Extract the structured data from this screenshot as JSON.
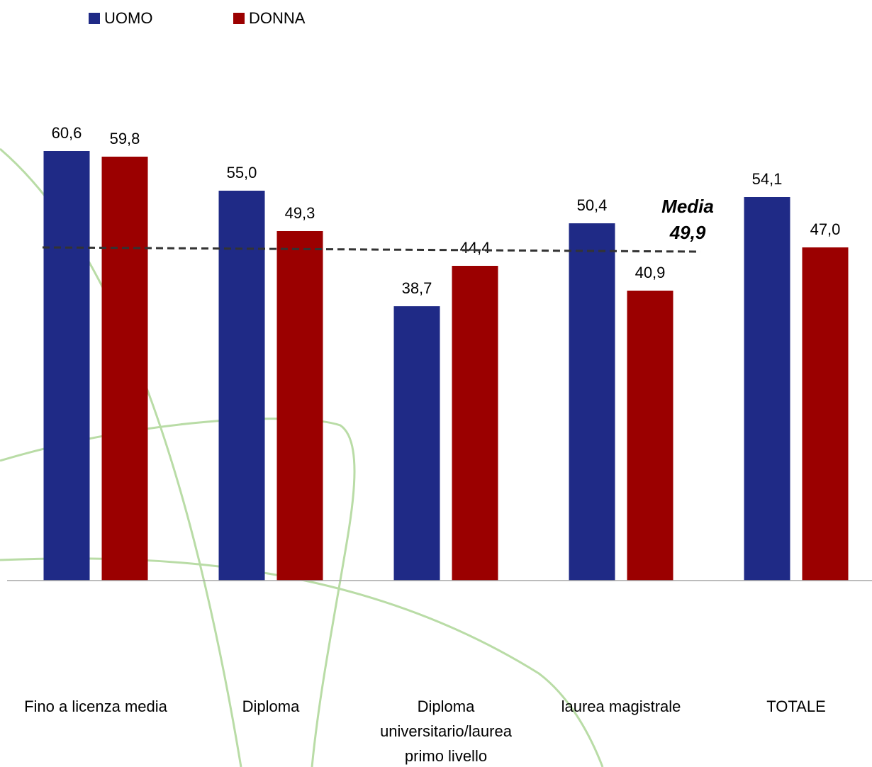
{
  "chart_data": {
    "type": "bar",
    "categories": [
      "Fino a licenza media",
      "Diploma",
      "Diploma universitario/laurea primo livello",
      "laurea magistrale",
      "TOTALE"
    ],
    "category_label_lines": [
      [
        "Fino a licenza media"
      ],
      [
        "Diploma"
      ],
      [
        "Diploma",
        "universitario/laurea",
        "primo livello"
      ],
      [
        "laurea magistrale"
      ],
      [
        "TOTALE"
      ]
    ],
    "series": [
      {
        "name": "UOMO",
        "color": "#1f2a86",
        "values": [
          60.6,
          55.0,
          38.7,
          50.4,
          54.1
        ],
        "labels": [
          "60,6",
          "55,0",
          "38,7",
          "50,4",
          "54,1"
        ]
      },
      {
        "name": "DONNA",
        "color": "#9b0000",
        "values": [
          59.8,
          49.3,
          44.4,
          40.9,
          47.0
        ],
        "labels": [
          "59,8",
          "49,3",
          "44,4",
          "40,9",
          "47,0"
        ]
      }
    ],
    "reference_line": {
      "label_line1": "Media",
      "label_line2": "49,9",
      "value": 49.9,
      "style": "dashed"
    },
    "ylim": [
      0,
      75
    ],
    "grid": false,
    "legend_position": "top-left"
  }
}
